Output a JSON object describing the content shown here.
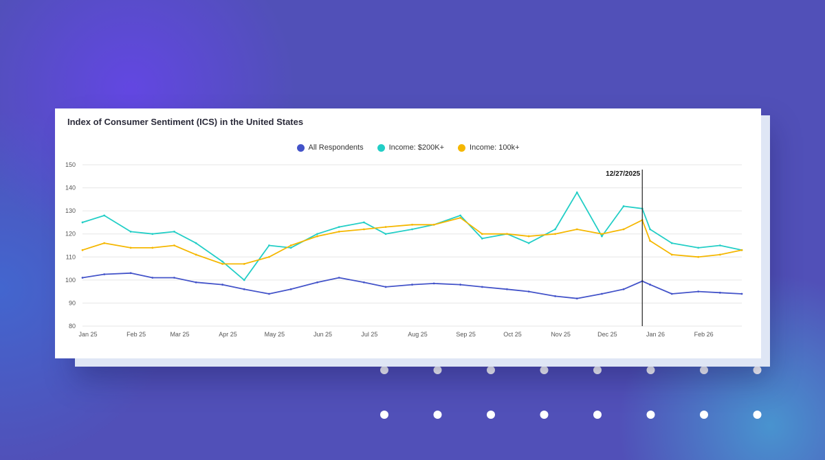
{
  "colors": {
    "all_respondents": "#4353c9",
    "income_200k": "#22cec6",
    "income_100k": "#f5b700",
    "grid": "#e6e6e6",
    "marker": "#222222"
  },
  "chart_data": {
    "type": "line",
    "title": "Index of Consumer Sentiment (ICS) in the United States",
    "xlabel": "",
    "ylabel": "",
    "ylim": [
      80,
      150
    ],
    "yticks": [
      80,
      90,
      100,
      110,
      120,
      130,
      140,
      150
    ],
    "grid": true,
    "legend_position": "top-center",
    "x_ticks": [
      "Jan 25",
      "Feb 25",
      "Mar 25",
      "Apr 25",
      "May 25",
      "Jun 25",
      "Jul 25",
      "Aug 25",
      "Sep 25",
      "Oct 25",
      "Nov 25",
      "Dec 25",
      "Jan 26",
      "Feb 26"
    ],
    "x": [
      "2025-01-01",
      "2025-01-15",
      "2025-02-01",
      "2025-02-15",
      "2025-03-01",
      "2025-03-15",
      "2025-04-01",
      "2025-04-15",
      "2025-05-01",
      "2025-05-15",
      "2025-06-01",
      "2025-06-15",
      "2025-07-01",
      "2025-07-15",
      "2025-08-01",
      "2025-08-15",
      "2025-09-01",
      "2025-09-15",
      "2025-10-01",
      "2025-10-15",
      "2025-11-01",
      "2025-11-15",
      "2025-12-01",
      "2025-12-15",
      "2025-12-27",
      "2026-01-01",
      "2026-01-15",
      "2026-02-01",
      "2026-02-15",
      "2026-03-01"
    ],
    "series": [
      {
        "name": "All Respondents",
        "color_key": "all_respondents",
        "values": [
          101,
          102.5,
          103,
          101,
          101,
          99,
          98,
          96,
          94,
          96,
          99,
          101,
          99,
          97,
          98,
          98.5,
          98,
          97,
          96,
          95,
          93,
          92,
          94,
          96,
          99.5,
          98,
          94,
          95,
          94.5,
          94
        ]
      },
      {
        "name": "Income: $200K+",
        "color_key": "income_200k",
        "values": [
          125,
          128,
          121,
          120,
          121,
          116,
          108,
          100,
          115,
          114,
          120,
          123,
          125,
          120,
          122,
          124,
          128,
          118,
          120,
          116,
          122,
          138,
          119,
          132,
          131,
          122,
          116,
          114,
          115,
          113
        ]
      },
      {
        "name": "Income: 100k+",
        "color_key": "income_100k",
        "values": [
          113,
          116,
          114,
          114,
          115,
          111,
          107,
          107,
          110,
          115,
          119,
          121,
          122,
          123,
          124,
          124,
          127,
          120,
          120,
          119,
          120,
          122,
          120,
          122,
          126,
          117,
          111,
          110,
          111,
          113
        ]
      }
    ],
    "annotation": {
      "x": "2025-12-27",
      "label": "12/27/2025"
    }
  }
}
